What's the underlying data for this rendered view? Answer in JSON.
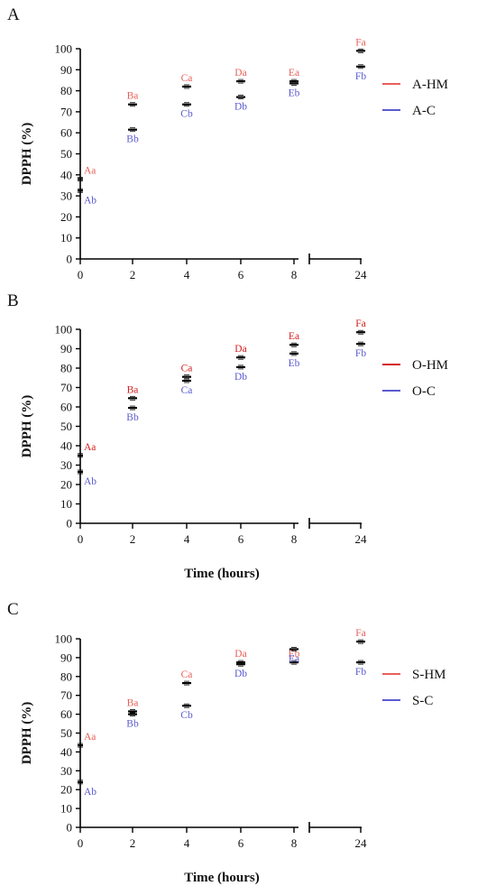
{
  "colors": {
    "hm": "#e8605a",
    "hm_dark": "#d42020",
    "c": "#5a5ad0",
    "axis": "#000000"
  },
  "chart_data": [
    {
      "type": "scatter",
      "panel": "A",
      "ylabel": "DPPH (%)",
      "xlabel": "",
      "x": [
        "0",
        "2",
        "4",
        "6",
        "8",
        "24"
      ],
      "ylim": [
        0,
        100
      ],
      "yticks": [
        "0",
        "10",
        "20",
        "30",
        "40",
        "50",
        "60",
        "70",
        "80",
        "90",
        "100"
      ],
      "grid": false,
      "legend_position": "right",
      "series": [
        {
          "name": "A-HM",
          "color_key": "hm",
          "values": [
            38,
            73.5,
            82,
            84.5,
            84.5,
            99
          ],
          "labels": [
            "Aa",
            "Ba",
            "Ca",
            "Da",
            "Ea",
            "Fa"
          ]
        },
        {
          "name": "A-C",
          "color_key": "c",
          "values": [
            32.5,
            61.5,
            73.5,
            77,
            83.5,
            91.5
          ],
          "labels": [
            "Ab",
            "Bb",
            "Cb",
            "Db",
            "Eb",
            "Fb"
          ]
        }
      ]
    },
    {
      "type": "scatter",
      "panel": "B",
      "ylabel": "DPPH (%)",
      "xlabel": "Time (hours)",
      "x": [
        "0",
        "2",
        "4",
        "6",
        "8",
        "24"
      ],
      "ylim": [
        0,
        100
      ],
      "yticks": [
        "0",
        "10",
        "20",
        "30",
        "40",
        "50",
        "60",
        "70",
        "80",
        "90",
        "100"
      ],
      "grid": false,
      "legend_position": "right",
      "series": [
        {
          "name": "O-HM",
          "color_key": "hm_dark",
          "values": [
            35,
            64.5,
            75.5,
            85.5,
            92,
            98.5
          ],
          "labels": [
            "Aa",
            "Ba",
            "Ca",
            "Da",
            "Ea",
            "Fa"
          ]
        },
        {
          "name": "O-C",
          "color_key": "c",
          "values": [
            26.5,
            59.5,
            73.5,
            80.5,
            87.5,
            92.5
          ],
          "labels": [
            "Ab",
            "Bb",
            "Ca",
            "Db",
            "Eb",
            "Fb"
          ]
        }
      ]
    },
    {
      "type": "scatter",
      "panel": "C",
      "ylabel": "DPPH (%)",
      "xlabel": "Time (hours)",
      "x": [
        "0",
        "2",
        "4",
        "6",
        "8",
        "24"
      ],
      "ylim": [
        0,
        100
      ],
      "yticks": [
        "0",
        "10",
        "20",
        "30",
        "40",
        "50",
        "60",
        "70",
        "80",
        "90",
        "100"
      ],
      "grid": false,
      "legend_position": "right",
      "series": [
        {
          "name": "S-HM",
          "color_key": "hm",
          "values": [
            43.5,
            61.5,
            76.5,
            87.5,
            87.5,
            98.5
          ],
          "labels": [
            "Aa",
            "Ba",
            "Ca",
            "Da",
            "Eb",
            "Fa"
          ]
        },
        {
          "name": "S-C",
          "color_key": "c",
          "values": [
            24,
            60,
            64.5,
            86.5,
            94.5,
            87.5
          ],
          "labels": [
            "Ab",
            "Bb",
            "Cb",
            "Db",
            "Ea",
            "Fb"
          ]
        }
      ]
    }
  ]
}
